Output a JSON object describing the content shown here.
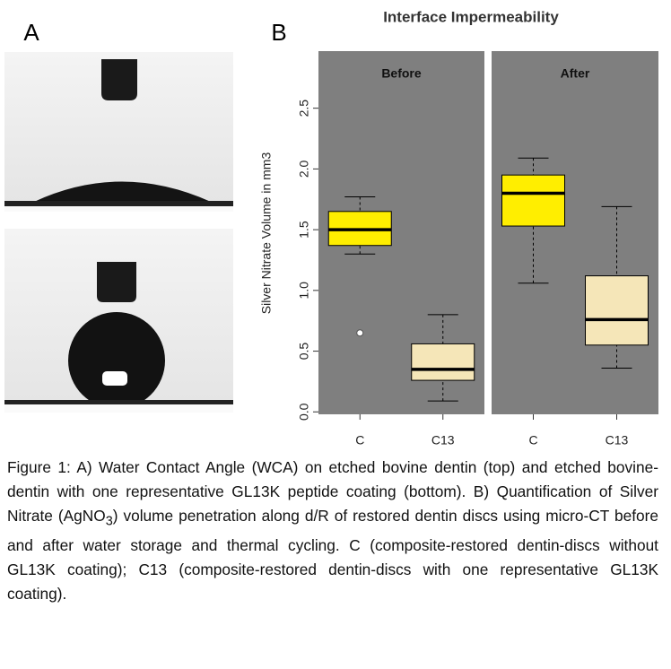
{
  "figure": {
    "panel_labels": [
      "A",
      "B"
    ],
    "caption": [
      "Figure 1: A) Water Contact Angle (WCA) on etched bovine dentin (top) and etched bovine-dentin with one representative GL13K peptide coating (bottom). B) Quantification of Silver Nitrate (AgNO",
      "3",
      ") volume penetration along d/R of restored dentin discs using micro-CT before and after water storage and thermal cycling. C (composite-restored dentin-discs without GL13K coating); C13 (composite-restored dentin-discs with one representative GL13K coating)."
    ]
  },
  "chart_data": {
    "type": "boxplot",
    "title": "Interface Impermeability",
    "ylabel": "Silver Nitrate Volume in mm3",
    "ylim": [
      -0.02,
      2.97
    ],
    "yticks": [
      {
        "value": 0,
        "label": "0.0"
      },
      0.5,
      {
        "value": 1,
        "label": "1.0"
      },
      1.5,
      {
        "value": 2,
        "label": "2.0"
      },
      2.5
    ],
    "panels": [
      {
        "name": "Before",
        "boxes": [
          {
            "category": "C",
            "color": "#ffee00",
            "whislo": 1.3,
            "q1": 1.37,
            "median": 1.5,
            "q3": 1.65,
            "whishi": 1.77,
            "fliers": [
              0.65
            ]
          },
          {
            "category": "C13",
            "color": "#f5e6b8",
            "whislo": 0.09,
            "q1": 0.26,
            "median": 0.35,
            "q3": 0.56,
            "whishi": 0.8,
            "fliers": []
          }
        ]
      },
      {
        "name": "After",
        "boxes": [
          {
            "category": "C",
            "color": "#ffee00",
            "whislo": 1.06,
            "q1": 1.53,
            "median": 1.8,
            "q3": 1.95,
            "whishi": 2.09,
            "fliers": []
          },
          {
            "category": "C13",
            "color": "#f5e6b8",
            "whislo": 0.36,
            "q1": 0.55,
            "median": 0.76,
            "q3": 1.12,
            "whishi": 1.69,
            "fliers": []
          }
        ]
      }
    ]
  }
}
